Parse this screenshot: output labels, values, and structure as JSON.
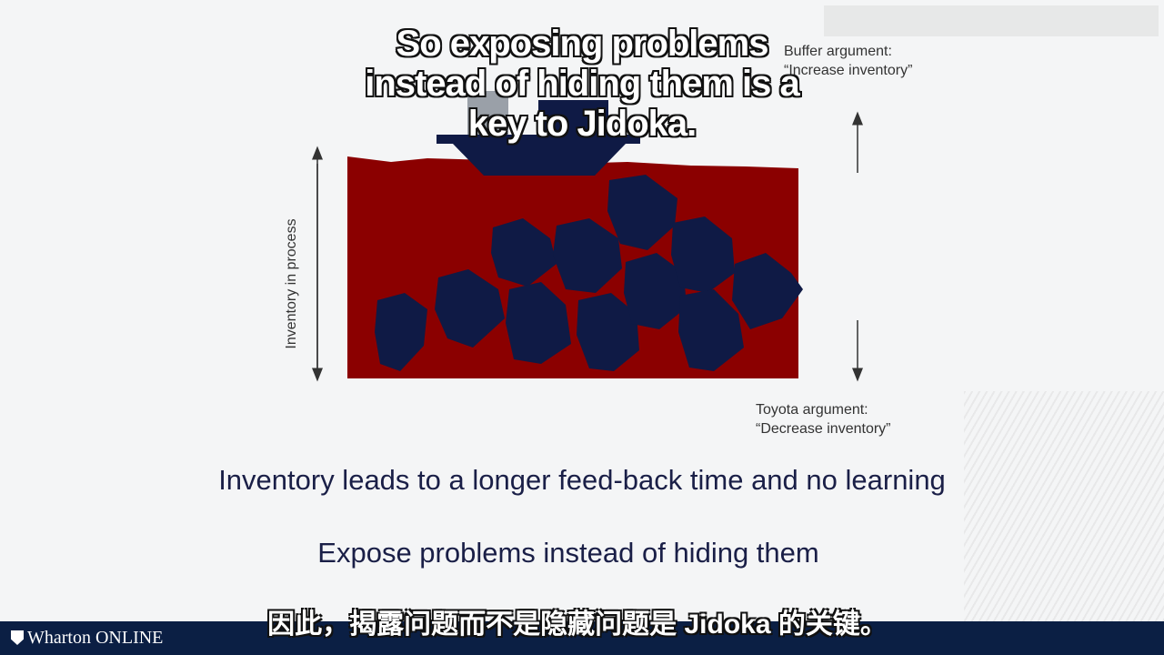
{
  "subtitles": {
    "english": "So exposing problems instead of hiding them is a key to Jidoka.",
    "chinese": "因此，揭露问题而不是隐藏问题是 Jidoka 的关键。"
  },
  "diagram": {
    "y_axis_label": "Inventory in process",
    "top_argument": {
      "line1": "Buffer argument:",
      "line2": "“Increase inventory”"
    },
    "bottom_argument": {
      "line1": "Toyota argument:",
      "line2": "“Decrease inventory”"
    }
  },
  "statements": {
    "line1": "Inventory leads to a longer feed-back time and no learning",
    "line2": "Expose problems instead of hiding them"
  },
  "footer": {
    "brand": "Wharton ONLINE"
  },
  "colors": {
    "water": "#8b0000",
    "rocks": "#0f1a45",
    "boat": "#0f1a45",
    "chimney": "#9aa0a8",
    "footer": "#0b1f44",
    "text": "#1a1f47"
  }
}
